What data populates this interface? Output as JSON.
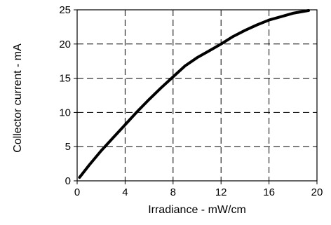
{
  "chart_data": {
    "type": "line",
    "title": "",
    "xlabel": "Irradiance - mW/cm",
    "ylabel": "Collector current - mA",
    "xlim": [
      0,
      20
    ],
    "ylim": [
      0,
      25
    ],
    "x_ticks": [
      0,
      4,
      8,
      12,
      16,
      20
    ],
    "y_ticks": [
      0,
      5,
      10,
      15,
      20,
      25
    ],
    "grid": true,
    "legend": "none",
    "series": [
      {
        "color": "#000000",
        "x": [
          0.2,
          1,
          2,
          3,
          4,
          5,
          6,
          7,
          8,
          9,
          10,
          11,
          12,
          13,
          14,
          15,
          16,
          17,
          18,
          19.3
        ],
        "y": [
          0.5,
          2.3,
          4.4,
          6.3,
          8.2,
          10.1,
          11.9,
          13.6,
          15.2,
          16.8,
          18.0,
          19.0,
          20.0,
          21.1,
          22.0,
          22.8,
          23.5,
          24.0,
          24.5,
          24.9
        ]
      }
    ]
  }
}
